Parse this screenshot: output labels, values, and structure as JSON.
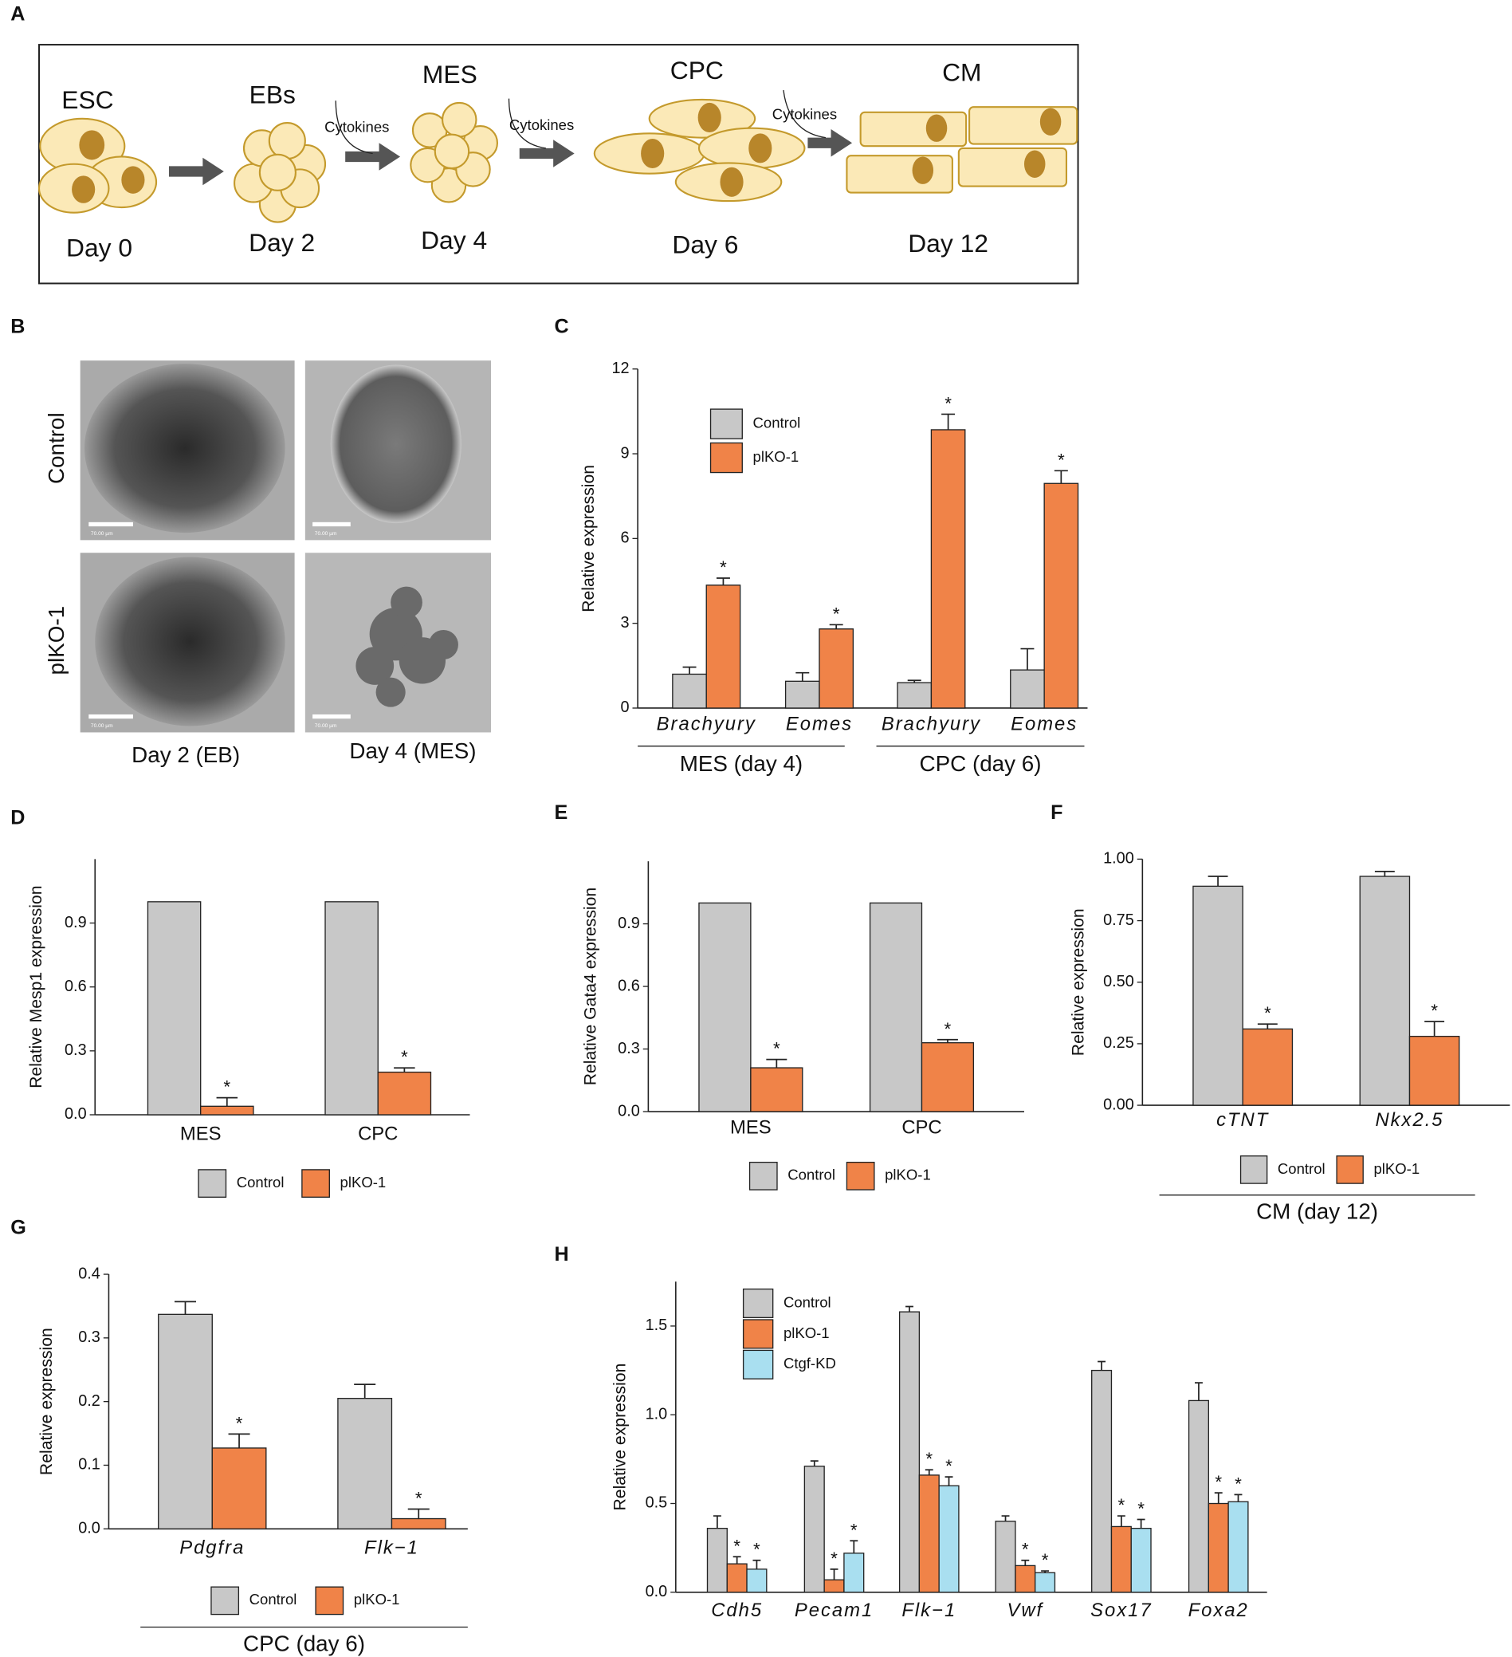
{
  "panel_labels": [
    "A",
    "B",
    "C",
    "D",
    "E",
    "F",
    "G",
    "H"
  ],
  "diagram": {
    "stages": [
      {
        "name": "ESC",
        "day": "Day 0"
      },
      {
        "name": "EBs",
        "day": "Day 2"
      },
      {
        "name": "MES",
        "day": "Day 4"
      },
      {
        "name": "CPC",
        "day": "Day 6"
      },
      {
        "name": "CM",
        "day": "Day 12"
      }
    ],
    "cytokines": "Cytokines"
  },
  "images": {
    "rows": [
      "Control",
      "plKO-1"
    ],
    "columns": [
      "Day 2 (EB)",
      "Day 4 (MES)"
    ],
    "scale_bar": "70.00 µm"
  },
  "chart_data": [
    {
      "type": "bar",
      "y_label": "Relative expression",
      "categories": [
        "Brachyury",
        "Eomes",
        "Brachyury",
        "Eomes"
      ],
      "group_labels": [
        "MES (day 4)",
        "CPC (day 6)"
      ],
      "series": [
        {
          "name": "Control",
          "color": "#c8c8c8",
          "values": [
            1.2,
            0.95,
            0.9,
            1.35
          ],
          "errors": [
            0.25,
            0.3,
            0.08,
            0.75
          ]
        },
        {
          "name": "plKO-1",
          "color": "#f08348",
          "values": [
            4.35,
            2.8,
            9.85,
            7.95
          ],
          "errors": [
            0.25,
            0.15,
            0.55,
            0.45
          ],
          "significance": [
            "*",
            "*",
            "*",
            "*"
          ]
        }
      ],
      "ylim": [
        0,
        12
      ],
      "yticks": [
        0,
        3,
        6,
        9,
        12
      ]
    },
    {
      "type": "bar",
      "y_label": "Relative Mesp1 expression",
      "categories": [
        "MES",
        "CPC"
      ],
      "series": [
        {
          "name": "Control",
          "color": "#c8c8c8",
          "values": [
            1.0,
            1.0
          ]
        },
        {
          "name": "plKO-1",
          "color": "#f08348",
          "values": [
            0.04,
            0.2
          ],
          "errors": [
            0.04,
            0.02
          ],
          "significance": [
            "*",
            "*"
          ]
        }
      ],
      "ylim": [
        0,
        1.2
      ],
      "yticks": [
        {
          "value": 0,
          "label": "0.0"
        },
        0.3,
        0.6,
        0.9
      ]
    },
    {
      "type": "bar",
      "y_label": "Relative Gata4 expression",
      "categories": [
        "MES",
        "CPC"
      ],
      "series": [
        {
          "name": "Control",
          "color": "#c8c8c8",
          "values": [
            1.0,
            1.0
          ]
        },
        {
          "name": "plKO-1",
          "color": "#f08348",
          "values": [
            0.21,
            0.33
          ],
          "errors": [
            0.04,
            0.015
          ],
          "significance": [
            "*",
            "*"
          ]
        }
      ],
      "ylim": [
        0,
        1.2
      ],
      "yticks": [
        {
          "value": 0,
          "label": "0.0"
        },
        0.3,
        0.6,
        0.9
      ]
    },
    {
      "type": "bar",
      "y_label": "Relative expression",
      "categories": [
        "cTNT",
        "Nkx2.5"
      ],
      "group_labels": [
        "CM (day 12)"
      ],
      "series": [
        {
          "name": "Control",
          "color": "#c8c8c8",
          "values": [
            0.89,
            0.93
          ],
          "errors": [
            0.04,
            0.02
          ]
        },
        {
          "name": "plKO-1",
          "color": "#f08348",
          "values": [
            0.31,
            0.28
          ],
          "errors": [
            0.02,
            0.06
          ],
          "significance": [
            "*",
            "*"
          ]
        }
      ],
      "ylim": [
        0,
        1
      ],
      "yticks": [
        {
          "value": 0,
          "label": "0.00"
        },
        {
          "value": 0.25,
          "label": "0.25"
        },
        {
          "value": 0.5,
          "label": "0.50"
        },
        {
          "value": 0.75,
          "label": "0.75"
        },
        {
          "value": 1,
          "label": "1.00"
        }
      ]
    },
    {
      "type": "bar",
      "y_label": "Relative expression",
      "categories": [
        "Pdgfra",
        "Flk−1"
      ],
      "group_labels": [
        "CPC (day 6)"
      ],
      "series": [
        {
          "name": "Control",
          "color": "#c8c8c8",
          "values": [
            0.337,
            0.205
          ],
          "errors": [
            0.02,
            0.022
          ]
        },
        {
          "name": "plKO-1",
          "color": "#f08348",
          "values": [
            0.127,
            0.016
          ],
          "errors": [
            0.022,
            0.015
          ],
          "significance": [
            "*",
            "*"
          ]
        }
      ],
      "ylim": [
        0,
        0.4
      ],
      "yticks": [
        {
          "value": 0,
          "label": "0.0"
        },
        0.1,
        0.2,
        0.3,
        0.4
      ]
    },
    {
      "type": "bar",
      "y_label": "Relative expression",
      "categories": [
        "Cdh5",
        "Pecam1",
        "Flk−1",
        "Vwf",
        "Sox17",
        "Foxa2"
      ],
      "series": [
        {
          "name": "Control",
          "color": "#c8c8c8",
          "values": [
            0.36,
            0.71,
            1.58,
            0.4,
            1.25,
            1.08
          ],
          "errors": [
            0.07,
            0.03,
            0.03,
            0.03,
            0.05,
            0.1
          ]
        },
        {
          "name": "plKO-1",
          "color": "#f08348",
          "values": [
            0.16,
            0.07,
            0.66,
            0.15,
            0.37,
            0.5
          ],
          "errors": [
            0.04,
            0.06,
            0.03,
            0.03,
            0.06,
            0.06
          ],
          "significance": [
            "*",
            "*",
            "*",
            "*",
            "*",
            "*"
          ]
        },
        {
          "name": "Ctgf-KD",
          "color": "#a9dff0",
          "values": [
            0.13,
            0.22,
            0.6,
            0.11,
            0.36,
            0.51
          ],
          "errors": [
            0.05,
            0.07,
            0.05,
            0.01,
            0.05,
            0.04
          ],
          "significance": [
            "*",
            "*",
            "*",
            "*",
            "*",
            "*"
          ]
        }
      ],
      "ylim": [
        0,
        1.75
      ],
      "yticks": [
        {
          "value": 0,
          "label": "0.0"
        },
        0.5,
        {
          "value": 1,
          "label": "1.0"
        },
        1.5
      ]
    }
  ]
}
